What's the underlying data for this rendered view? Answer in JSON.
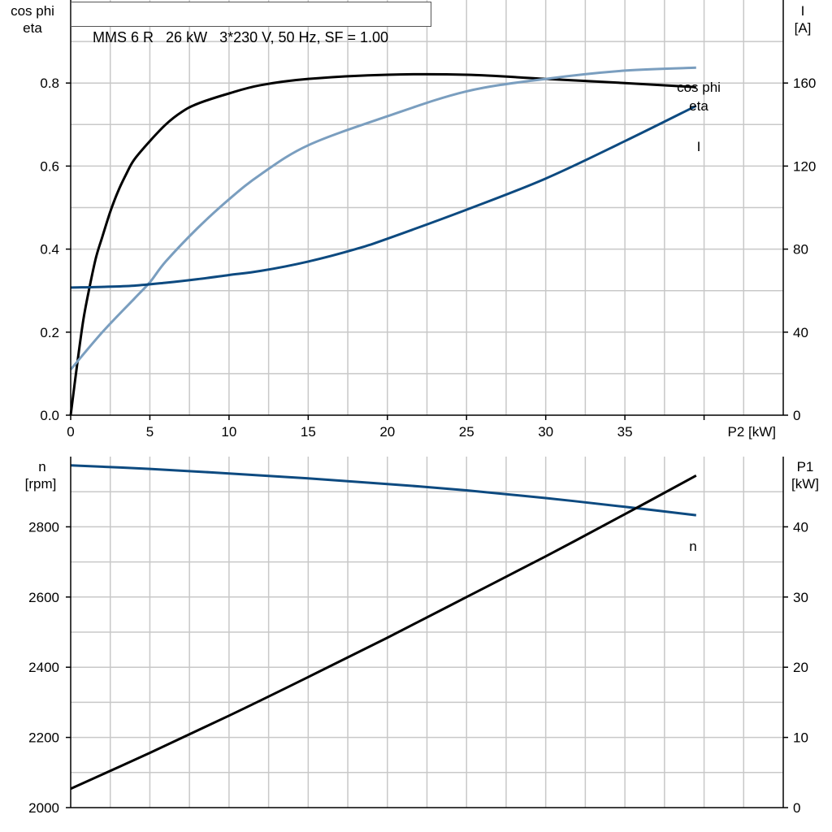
{
  "header": {
    "model": "MMS 6 R",
    "power": "26 kW",
    "supply": "3*230 V, 50 Hz, SF = 1.00"
  },
  "colors": {
    "eta": "#000000",
    "cos_phi": "#7a9ebf",
    "current": "#0d4a80",
    "speed": "#0d4a80",
    "p1": "#000000",
    "grid": "#c8c8c8"
  },
  "chart_data": [
    {
      "type": "line",
      "name_hint": "efficiency-chart",
      "xlabel": "P2 [kW]",
      "ylabel_left": [
        "cos phi",
        "eta"
      ],
      "ylabel_right": [
        "I",
        "[A]"
      ],
      "xlim": [
        0,
        45
      ],
      "ylim_left": [
        0,
        1.0
      ],
      "ylim_right": [
        0,
        200
      ],
      "xticks": [
        "0",
        "5",
        "10",
        "15",
        "20",
        "25",
        "30",
        "35"
      ],
      "yticks_left": [
        "0.0",
        "0.2",
        "0.4",
        "0.6",
        "0.8"
      ],
      "yticks_right": [
        "0",
        "40",
        "80",
        "120",
        "160"
      ],
      "grid": true,
      "series": [
        {
          "name": "eta",
          "axis": "left",
          "x": [
            0,
            0.4,
            0.8,
            1.2,
            1.6,
            2,
            2.5,
            3,
            3.5,
            4,
            5,
            6,
            7,
            8,
            10,
            12,
            15,
            20,
            25,
            30,
            35,
            39.5
          ],
          "y": [
            0,
            0.12,
            0.23,
            0.31,
            0.38,
            0.43,
            0.49,
            0.54,
            0.58,
            0.615,
            0.66,
            0.7,
            0.73,
            0.75,
            0.775,
            0.795,
            0.81,
            0.82,
            0.82,
            0.81,
            0.8,
            0.79
          ]
        },
        {
          "name": "cos phi",
          "axis": "left",
          "x": [
            0,
            2,
            4,
            5,
            6,
            8,
            10,
            12,
            15,
            20,
            25,
            30,
            35,
            39.5
          ],
          "y": [
            0.11,
            0.2,
            0.28,
            0.32,
            0.37,
            0.45,
            0.52,
            0.58,
            0.65,
            0.72,
            0.78,
            0.81,
            0.83,
            0.837
          ]
        },
        {
          "name": "I",
          "axis": "right",
          "x": [
            0,
            2,
            4,
            6,
            8,
            10,
            12,
            15,
            18,
            20,
            25,
            30,
            35,
            39.5
          ],
          "y": [
            61.5,
            61.8,
            62.4,
            63.8,
            65.5,
            67.5,
            69.5,
            74,
            80,
            85,
            99,
            114,
            132,
            149
          ]
        }
      ],
      "annotations": [
        "cos phi",
        "eta",
        "I"
      ]
    },
    {
      "type": "line",
      "name_hint": "speed-power-chart",
      "ylabel_left": [
        "n",
        "[rpm]"
      ],
      "ylabel_right": [
        "P1",
        "[kW]"
      ],
      "xlim": [
        0,
        45
      ],
      "ylim_left": [
        2000,
        3000
      ],
      "ylim_right": [
        0,
        50
      ],
      "yticks_left": [
        "2000",
        "2200",
        "2400",
        "2600",
        "2800"
      ],
      "yticks_right": [
        "0",
        "10",
        "20",
        "30",
        "40"
      ],
      "grid": true,
      "series": [
        {
          "name": "n",
          "axis": "left",
          "x": [
            0,
            5,
            10,
            15,
            20,
            25,
            30,
            35,
            39.5
          ],
          "y": [
            2975,
            2965,
            2952,
            2938,
            2922,
            2904,
            2882,
            2857,
            2833
          ]
        },
        {
          "name": "P1",
          "axis": "right",
          "x": [
            0,
            5,
            10,
            15,
            20,
            25,
            30,
            35,
            39.5
          ],
          "y": [
            2.7,
            7.8,
            13.1,
            18.6,
            24.2,
            30,
            35.8,
            41.8,
            47.3
          ]
        }
      ],
      "annotations": [
        "n"
      ]
    }
  ]
}
